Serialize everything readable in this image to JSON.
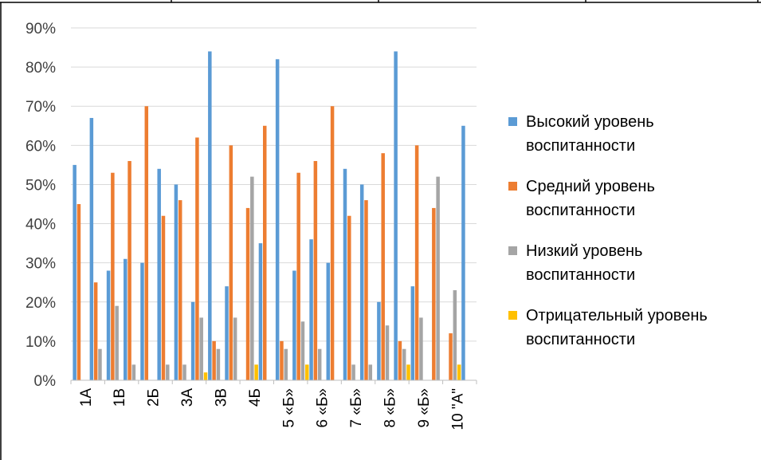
{
  "chart_data": {
    "type": "bar",
    "title": "",
    "xlabel": "",
    "ylabel": "",
    "ylim": [
      0,
      0.9
    ],
    "ytick_labels": [
      "0%",
      "10%",
      "20%",
      "30%",
      "40%",
      "50%",
      "60%",
      "70%",
      "80%",
      "90%"
    ],
    "grid": true,
    "legend_position": "right",
    "categories": [
      "1А",
      "1В",
      "2Б",
      "3А",
      "3В",
      "4Б",
      "5 «Б»",
      "6 «Б»",
      "7 «Б»",
      "8 «Б»",
      "9 «Б»",
      "10 \"А\""
    ],
    "series": [
      {
        "name": "Высокий уровень воспитанности",
        "color": "#5B9BD5",
        "values": [
          [
            0.55,
            0.67
          ],
          [
            0.28,
            0.31
          ],
          [
            0.3,
            0.54
          ],
          [
            0.5,
            0.2
          ],
          [
            0.84,
            0.24
          ],
          [
            0,
            0.35
          ],
          [
            0.82,
            0.28
          ],
          [
            0.36,
            0.3
          ],
          [
            0.54,
            0.5
          ],
          [
            0.2,
            0.84
          ],
          [
            0.24,
            0
          ],
          [
            0,
            0.65
          ]
        ]
      },
      {
        "name": "Средний уровень воспитанности",
        "color": "#ED7D31",
        "values": [
          [
            0.45,
            0.25
          ],
          [
            0.53,
            0.56
          ],
          [
            0.7,
            0.42
          ],
          [
            0.46,
            0.62
          ],
          [
            0.1,
            0.6
          ],
          [
            0.44,
            0.65
          ],
          [
            0.1,
            0.53
          ],
          [
            0.56,
            0.7
          ],
          [
            0.42,
            0.46
          ],
          [
            0.58,
            0.1
          ],
          [
            0.6,
            0.44
          ],
          [
            0.12,
            0
          ]
        ]
      },
      {
        "name": "Низкий уровень воспитанности",
        "color": "#A5A5A5",
        "values": [
          [
            0,
            0.08
          ],
          [
            0.19,
            0.04
          ],
          [
            0,
            0.04
          ],
          [
            0.04,
            0.16
          ],
          [
            0.08,
            0.16
          ],
          [
            0.52,
            0
          ],
          [
            0.08,
            0.15
          ],
          [
            0.08,
            0
          ],
          [
            0.04,
            0.04
          ],
          [
            0.14,
            0.08
          ],
          [
            0.16,
            0.52
          ],
          [
            0.23,
            0
          ]
        ]
      },
      {
        "name": "Отрицательный уровень воспитанности",
        "color": "#FFC000",
        "values": [
          [
            0,
            0
          ],
          [
            0,
            0
          ],
          [
            0,
            0
          ],
          [
            0,
            0.02
          ],
          [
            0,
            0
          ],
          [
            0.04,
            0
          ],
          [
            0,
            0.04
          ],
          [
            0,
            0
          ],
          [
            0,
            0
          ],
          [
            0,
            0.04
          ],
          [
            0,
            0
          ],
          [
            0.04,
            0
          ]
        ]
      }
    ],
    "legend_lines": [
      [
        "Высокий уровень",
        "воспитанности"
      ],
      [
        "Средний уровень",
        "воспитанности"
      ],
      [
        "Низкий уровень",
        "воспитанности"
      ],
      [
        "Отрицательный уровень",
        "воспитанности"
      ]
    ]
  }
}
